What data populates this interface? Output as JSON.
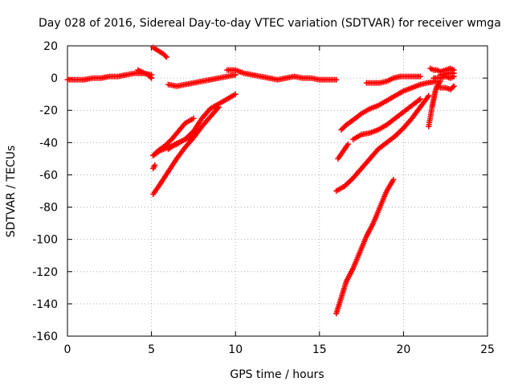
{
  "chart_data": {
    "type": "scatter",
    "title": "Day 028 of 2016, Sidereal Day-to-day VTEC variation (SDTVAR) for receiver wmga",
    "xlabel": "GPS time / hours",
    "ylabel": "SDTVAR / TECUs",
    "xlim": [
      0,
      25
    ],
    "ylim": [
      -160,
      20
    ],
    "xticks": [
      0,
      5,
      10,
      15,
      20,
      25
    ],
    "yticks": [
      20,
      0,
      -20,
      -40,
      -60,
      -80,
      -100,
      -120,
      -140,
      -160
    ],
    "grid": true,
    "marker": "+",
    "color": "#ff0000",
    "tracks": [
      {
        "x": [
          0.0,
          0.5,
          1.0,
          1.5,
          2.0,
          2.5,
          3.0,
          3.5,
          4.0,
          4.5,
          5.0
        ],
        "y": [
          -1,
          -1,
          -1,
          0,
          0,
          1,
          1,
          2,
          3,
          3,
          2
        ]
      },
      {
        "x": [
          4.2,
          4.4,
          4.6,
          4.8,
          5.0
        ],
        "y": [
          5,
          4,
          3,
          2,
          0
        ]
      },
      {
        "x": [
          5.1,
          5.4,
          5.7,
          5.9
        ],
        "y": [
          19,
          17,
          15,
          13
        ]
      },
      {
        "x": [
          6.0,
          6.5,
          7.0,
          7.5,
          8.0,
          8.5,
          9.0,
          9.5,
          10.0
        ],
        "y": [
          -4,
          -5,
          -4,
          -3,
          -2,
          -1,
          0,
          1,
          2
        ]
      },
      {
        "x": [
          9.5,
          10.0,
          10.5,
          11.0,
          11.5,
          12.0,
          12.5,
          13.0,
          13.5,
          14.0,
          14.5,
          15.0,
          15.5,
          16.0
        ],
        "y": [
          5,
          5,
          3,
          2,
          1,
          0,
          -1,
          0,
          1,
          0,
          0,
          -1,
          -1,
          -1
        ]
      },
      {
        "x": [
          5.1,
          5.4,
          5.8,
          6.2,
          6.6,
          7.0,
          7.5
        ],
        "y": [
          -48,
          -45,
          -42,
          -38,
          -33,
          -28,
          -25
        ]
      },
      {
        "x": [
          5.1,
          5.5,
          6.0,
          6.5,
          7.0,
          7.5,
          8.0,
          8.5,
          9.0,
          9.5,
          10.0
        ],
        "y": [
          -48,
          -45,
          -43,
          -41,
          -38,
          -33,
          -25,
          -19,
          -16,
          -13,
          -10
        ]
      },
      {
        "x": [
          5.1,
          5.5,
          6.0,
          6.5,
          7.0,
          7.5,
          8.0,
          8.5,
          9.0
        ],
        "y": [
          -72,
          -66,
          -58,
          -50,
          -43,
          -37,
          -30,
          -24,
          -18
        ]
      },
      {
        "x": [
          5.1,
          5.2
        ],
        "y": [
          -56,
          -54
        ]
      },
      {
        "x": [
          6.0,
          6.4,
          6.8,
          7.2,
          7.6
        ],
        "y": [
          -44,
          -41,
          -39,
          -37,
          -35
        ]
      },
      {
        "x": [
          16.1,
          16.3,
          16.5,
          16.7
        ],
        "y": [
          -50,
          -47,
          -44,
          -41
        ]
      },
      {
        "x": [
          16.3,
          16.6,
          17.0,
          17.5,
          18.0,
          18.5,
          19.0,
          19.5,
          20.0,
          20.5,
          21.0,
          21.4,
          22.0
        ],
        "y": [
          -32,
          -29,
          -26,
          -22,
          -19,
          -17,
          -14,
          -11,
          -8,
          -6,
          -4,
          -3,
          -2
        ]
      },
      {
        "x": [
          16.0,
          16.5,
          17.0,
          17.5,
          18.0,
          18.5,
          19.0,
          19.5,
          20.0,
          20.5,
          21.0,
          21.5
        ],
        "y": [
          -70,
          -67,
          -62,
          -56,
          -50,
          -44,
          -40,
          -36,
          -31,
          -25,
          -18,
          -11
        ]
      },
      {
        "x": [
          17.0,
          17.5,
          18.0,
          18.5,
          19.0,
          19.5,
          20.0,
          20.5,
          21.0
        ],
        "y": [
          -38,
          -35,
          -34,
          -32,
          -29,
          -25,
          -21,
          -17,
          -13
        ]
      },
      {
        "x": [
          16.0,
          16.3,
          16.6,
          17.0,
          17.4,
          17.8,
          18.2,
          18.6,
          19.0,
          19.4
        ],
        "y": [
          -146,
          -136,
          -126,
          -118,
          -108,
          -98,
          -90,
          -80,
          -70,
          -63
        ]
      },
      {
        "x": [
          17.8,
          18.2,
          18.6,
          19.0,
          19.4,
          19.8,
          20.2,
          20.6,
          21.0
        ],
        "y": [
          -3,
          -3,
          -3,
          -2,
          0,
          1,
          1,
          1,
          1
        ]
      },
      {
        "x": [
          21.5,
          21.6,
          21.7,
          21.8,
          21.9,
          22.0,
          22.2
        ],
        "y": [
          -30,
          -24,
          -18,
          -13,
          -8,
          -5,
          -2
        ]
      },
      {
        "x": [
          21.6,
          21.8,
          22.0,
          22.2,
          22.5,
          22.8,
          23.0
        ],
        "y": [
          6,
          5,
          5,
          4,
          5,
          6,
          5
        ]
      },
      {
        "x": [
          21.8,
          22.0,
          22.2,
          22.5,
          22.8,
          23.0
        ],
        "y": [
          0,
          0,
          0,
          1,
          0,
          1
        ]
      },
      {
        "x": [
          22.0,
          22.2,
          22.5,
          22.8,
          23.0
        ],
        "y": [
          -5,
          -6,
          -6,
          -7,
          -5
        ]
      },
      {
        "x": [
          22.2,
          22.4,
          22.6,
          22.8,
          23.0
        ],
        "y": [
          2,
          2,
          3,
          3,
          3
        ]
      }
    ]
  }
}
